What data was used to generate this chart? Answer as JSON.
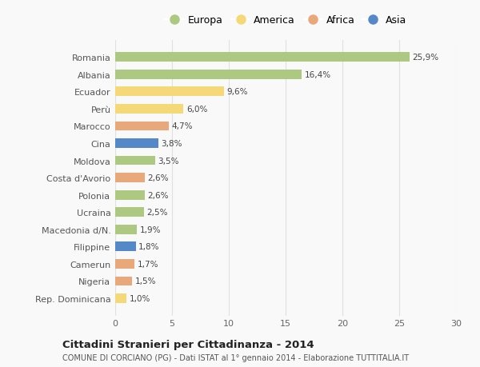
{
  "countries": [
    "Romania",
    "Albania",
    "Ecuador",
    "Perù",
    "Marocco",
    "Cina",
    "Moldova",
    "Costa d'Avorio",
    "Polonia",
    "Ucraina",
    "Macedonia d/N.",
    "Filippine",
    "Camerun",
    "Nigeria",
    "Rep. Dominicana"
  ],
  "values": [
    25.9,
    16.4,
    9.6,
    6.0,
    4.7,
    3.8,
    3.5,
    2.6,
    2.6,
    2.5,
    1.9,
    1.8,
    1.7,
    1.5,
    1.0
  ],
  "labels": [
    "25,9%",
    "16,4%",
    "9,6%",
    "6,0%",
    "4,7%",
    "3,8%",
    "3,5%",
    "2,6%",
    "2,6%",
    "2,5%",
    "1,9%",
    "1,8%",
    "1,7%",
    "1,5%",
    "1,0%"
  ],
  "categories": [
    "Europa",
    "Europa",
    "America",
    "America",
    "Africa",
    "Asia",
    "Europa",
    "Africa",
    "Europa",
    "Europa",
    "Europa",
    "Asia",
    "Africa",
    "Africa",
    "America"
  ],
  "colors": {
    "Europa": "#adc880",
    "America": "#f5d878",
    "Africa": "#e8a87a",
    "Asia": "#5588c8"
  },
  "xlim": [
    0,
    30
  ],
  "xticks": [
    0,
    5,
    10,
    15,
    20,
    25,
    30
  ],
  "title": "Cittadini Stranieri per Cittadinanza - 2014",
  "subtitle": "COMUNE DI CORCIANO (PG) - Dati ISTAT al 1° gennaio 2014 - Elaborazione TUTTITALIA.IT",
  "background_color": "#f9f9f9",
  "grid_color": "#e0e0e0",
  "bar_height": 0.55,
  "legend_order": [
    "Europa",
    "America",
    "Africa",
    "Asia"
  ]
}
